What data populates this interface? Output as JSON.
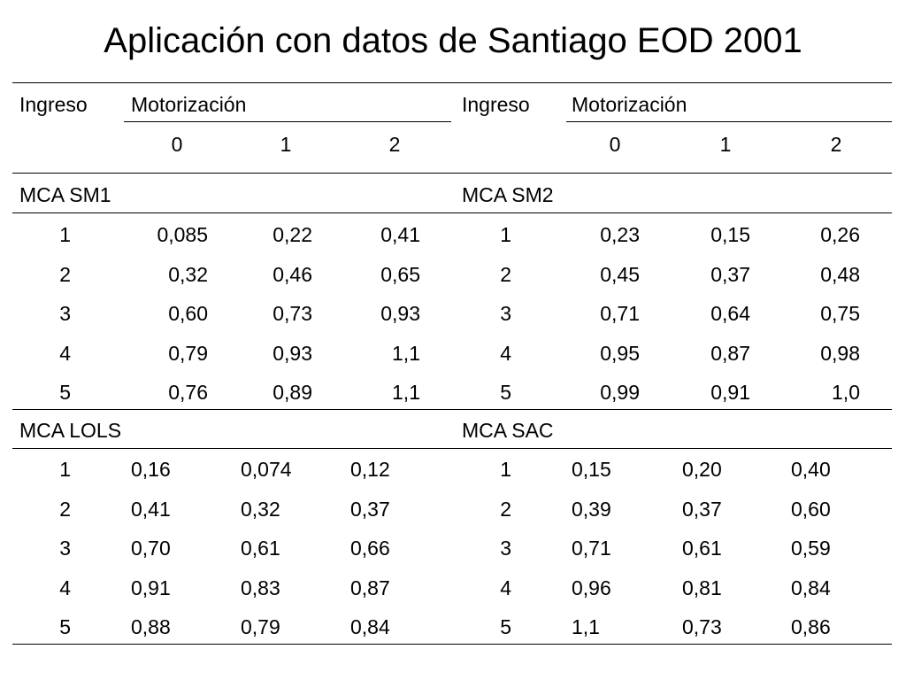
{
  "title": "Aplicación con datos de Santiago EOD 2001",
  "header": {
    "left": {
      "col1": "Ingreso",
      "group": "Motorización",
      "levels": [
        "0",
        "1",
        "2"
      ]
    },
    "right": {
      "col1": "Ingreso",
      "group": "Motorización",
      "levels": [
        "0",
        "1",
        "2"
      ]
    }
  },
  "sections": [
    {
      "left": {
        "label": "MCA SM1",
        "rows": [
          {
            "ingreso": "1",
            "values": [
              "0,085",
              "0,22",
              "0,41"
            ]
          },
          {
            "ingreso": "2",
            "values": [
              "0,32",
              "0,46",
              "0,65"
            ]
          },
          {
            "ingreso": "3",
            "values": [
              "0,60",
              "0,73",
              "0,93"
            ]
          },
          {
            "ingreso": "4",
            "values": [
              "0,79",
              "0,93",
              "1,1"
            ]
          },
          {
            "ingreso": "5",
            "values": [
              "0,76",
              "0,89",
              "1,1"
            ]
          }
        ]
      },
      "right": {
        "label": "MCA SM2",
        "rows": [
          {
            "ingreso": "1",
            "values": [
              "0,23",
              "0,15",
              "0,26"
            ]
          },
          {
            "ingreso": "2",
            "values": [
              "0,45",
              "0,37",
              "0,48"
            ]
          },
          {
            "ingreso": "3",
            "values": [
              "0,71",
              "0,64",
              "0,75"
            ]
          },
          {
            "ingreso": "4",
            "values": [
              "0,95",
              "0,87",
              "0,98"
            ]
          },
          {
            "ingreso": "5",
            "values": [
              "0,99",
              "0,91",
              "1,0"
            ]
          }
        ]
      }
    },
    {
      "left": {
        "label": "MCA LOLS",
        "rows": [
          {
            "ingreso": "1",
            "values": [
              "0,16",
              "0,074",
              "0,12"
            ]
          },
          {
            "ingreso": "2",
            "values": [
              "0,41",
              "0,32",
              "0,37"
            ]
          },
          {
            "ingreso": "3",
            "values": [
              "0,70",
              "0,61",
              "0,66"
            ]
          },
          {
            "ingreso": "4",
            "values": [
              "0,91",
              "0,83",
              "0,87"
            ]
          },
          {
            "ingreso": "5",
            "values": [
              "0,88",
              "0,79",
              "0,84"
            ]
          }
        ]
      },
      "right": {
        "label": "MCA SAC",
        "rows": [
          {
            "ingreso": "1",
            "values": [
              "0,15",
              "0,20",
              "0,40"
            ]
          },
          {
            "ingreso": "2",
            "values": [
              "0,39",
              "0,37",
              "0,60"
            ]
          },
          {
            "ingreso": "3",
            "values": [
              "0,71",
              "0,61",
              "0,59"
            ]
          },
          {
            "ingreso": "4",
            "values": [
              "0,96",
              "0,81",
              "0,84"
            ]
          },
          {
            "ingreso": "5",
            "values": [
              "1,1",
              "0,73",
              "0,86"
            ]
          }
        ]
      }
    }
  ]
}
